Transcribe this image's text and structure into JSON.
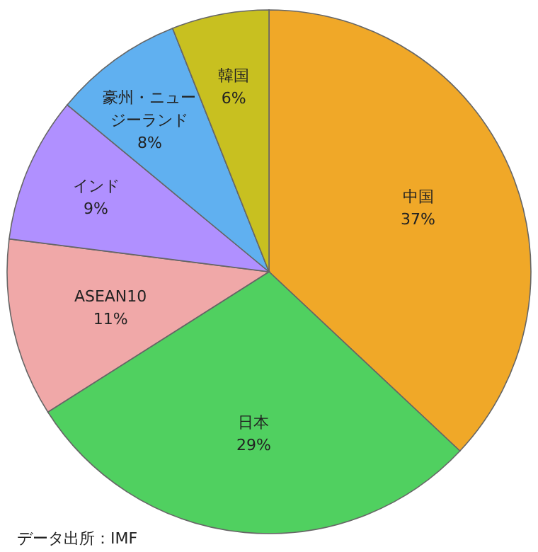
{
  "chart_data": {
    "type": "pie",
    "categories": [
      "中国",
      "日本",
      "ASEAN10",
      "インド",
      "豪州・ニュージーランド",
      "韓国"
    ],
    "values": [
      37,
      29,
      11,
      9,
      8,
      6
    ],
    "colors": [
      "#f0a828",
      "#50d060",
      "#f0a8a8",
      "#b090ff",
      "#60b0f0",
      "#c8c020"
    ],
    "value_labels": [
      "37%",
      "29%",
      "11%",
      "9%",
      "8%",
      "6%"
    ],
    "annotations": [
      "データ出所：IMF"
    ]
  }
}
